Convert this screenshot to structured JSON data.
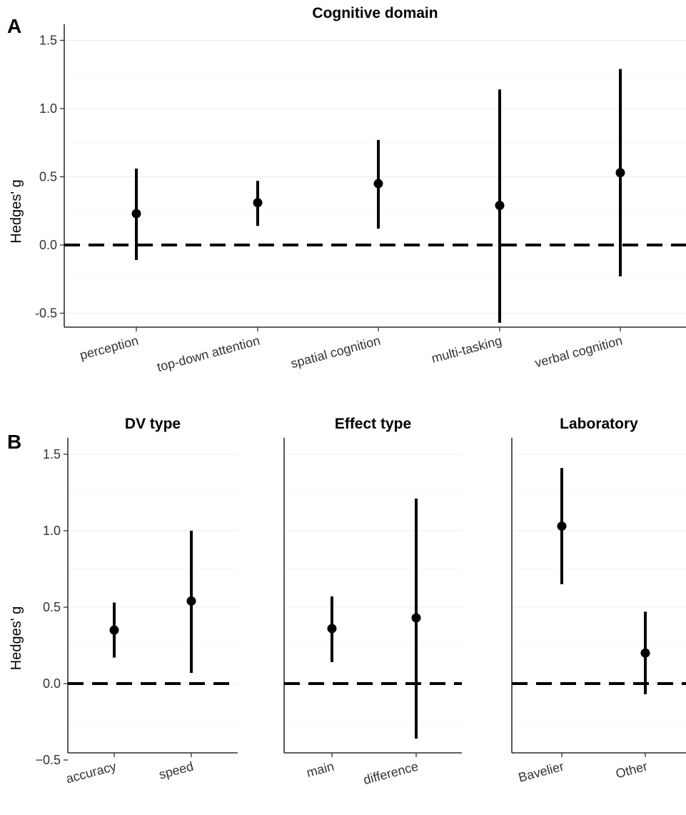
{
  "panel_labels": {
    "a": "A",
    "b": "B"
  },
  "chart_data": [
    {
      "type": "errorbar",
      "panel": "A",
      "title": "Cognitive domain",
      "ylabel": "Hedges' g",
      "xlabel": "",
      "ylim": [
        -0.6,
        1.6
      ],
      "yticks": [
        -0.5,
        0.0,
        0.5,
        1.0,
        1.5
      ],
      "ytick_labels": [
        "-0.5",
        "0.0",
        "0.5",
        "1.0",
        "1.5"
      ],
      "reference_line": 0,
      "grid": true,
      "categories": [
        "perception",
        "top-down attention",
        "spatial cognition",
        "multi-tasking",
        "verbal cognition"
      ],
      "values": [
        0.23,
        0.31,
        0.45,
        0.29,
        0.53
      ],
      "lower": [
        -0.11,
        0.14,
        0.12,
        -0.57,
        -0.23
      ],
      "upper": [
        0.56,
        0.47,
        0.77,
        1.14,
        1.29
      ]
    },
    {
      "type": "errorbar",
      "panel": "B",
      "title": "DV type",
      "ylabel": "Hedges' g",
      "xlabel": "",
      "ylim": [
        -0.6,
        1.6
      ],
      "yticks": [
        -0.5,
        0.0,
        0.5,
        1.0,
        1.5
      ],
      "ytick_labels": [
        "−0.5",
        "0.0",
        "0.5",
        "1.0",
        "1.5"
      ],
      "reference_line": 0,
      "grid": true,
      "categories": [
        "accuracy",
        "speed"
      ],
      "values": [
        0.35,
        0.54
      ],
      "lower": [
        0.17,
        0.07
      ],
      "upper": [
        0.53,
        1.0
      ]
    },
    {
      "type": "errorbar",
      "panel": "B",
      "title": "Effect type",
      "ylim": [
        -0.6,
        1.6
      ],
      "reference_line": 0,
      "grid": true,
      "categories": [
        "main",
        "difference"
      ],
      "values": [
        0.36,
        0.43
      ],
      "lower": [
        0.14,
        -0.36
      ],
      "upper": [
        0.57,
        1.21
      ]
    },
    {
      "type": "errorbar",
      "panel": "B",
      "title": "Laboratory",
      "ylim": [
        -0.6,
        1.6
      ],
      "reference_line": 0,
      "grid": true,
      "categories": [
        "Bavelier",
        "Other"
      ],
      "values": [
        1.03,
        0.2
      ],
      "lower": [
        0.65,
        -0.07
      ],
      "upper": [
        1.41,
        0.47
      ]
    }
  ]
}
